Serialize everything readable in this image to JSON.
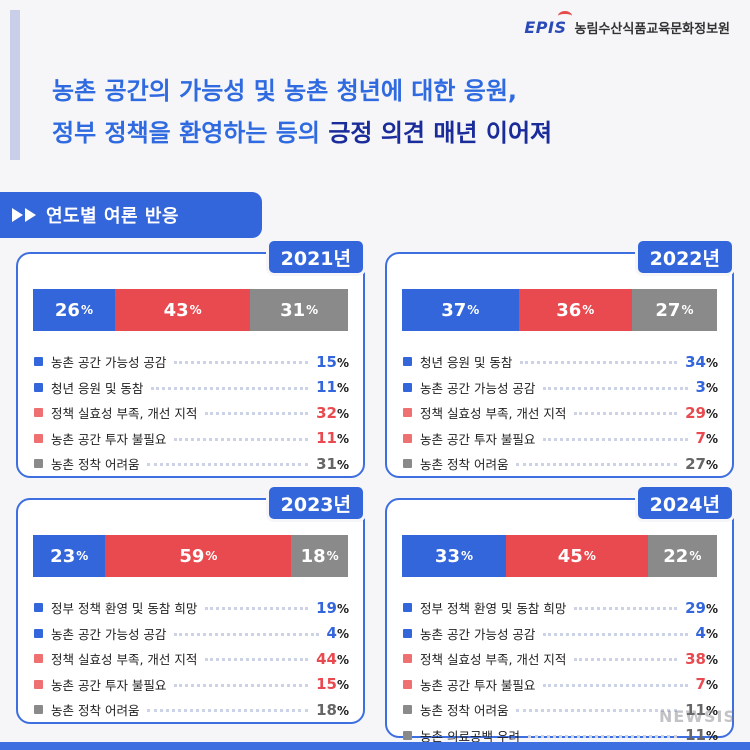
{
  "org": {
    "logo": "EPIS",
    "name": "농림수산식품교육문화정보원"
  },
  "headline": {
    "line1": "농촌 공간의 가능성 및 농촌 청년에 대한 응원,",
    "line2_prefix": "정부 정책을 환영하는 등의 ",
    "line2_highlight": "긍정 의견 매년 이어져"
  },
  "section_title": "연도별 여론 반응",
  "colors": {
    "blue": "#3466db",
    "red": "#e84a4f",
    "gray": "#8a8a8a"
  },
  "watermark": "NEWSIS",
  "chart_data": [
    {
      "type": "bar",
      "title": "2021년",
      "stacked_bar": [
        {
          "value": 26,
          "color": "blue"
        },
        {
          "value": 43,
          "color": "red"
        },
        {
          "value": 31,
          "color": "gray"
        }
      ],
      "items": [
        {
          "label": "농촌 공간 가능성 공감",
          "value": 15,
          "color": "blue"
        },
        {
          "label": "청년 응원 및 동참",
          "value": 11,
          "color": "blue"
        },
        {
          "label": "정책 실효성 부족, 개선 지적",
          "value": 32,
          "color": "red"
        },
        {
          "label": "농촌 공간 투자 불필요",
          "value": 11,
          "color": "red"
        },
        {
          "label": "농촌 정착 어려움",
          "value": 31,
          "color": "gray"
        }
      ]
    },
    {
      "type": "bar",
      "title": "2022년",
      "stacked_bar": [
        {
          "value": 37,
          "color": "blue"
        },
        {
          "value": 36,
          "color": "red"
        },
        {
          "value": 27,
          "color": "gray"
        }
      ],
      "items": [
        {
          "label": "청년 응원 및 동참",
          "value": 34,
          "color": "blue"
        },
        {
          "label": "농촌 공간 가능성 공감",
          "value": 3,
          "color": "blue"
        },
        {
          "label": "정책 실효성 부족, 개선 지적",
          "value": 29,
          "color": "red"
        },
        {
          "label": "농촌 공간 투자 불필요",
          "value": 7,
          "color": "red"
        },
        {
          "label": "농촌 정착 어려움",
          "value": 27,
          "color": "gray"
        }
      ]
    },
    {
      "type": "bar",
      "title": "2023년",
      "stacked_bar": [
        {
          "value": 23,
          "color": "blue"
        },
        {
          "value": 59,
          "color": "red"
        },
        {
          "value": 18,
          "color": "gray"
        }
      ],
      "items": [
        {
          "label": "정부 정책 환영 및 동참 희망",
          "value": 19,
          "color": "blue"
        },
        {
          "label": "농촌 공간 가능성 공감",
          "value": 4,
          "color": "blue"
        },
        {
          "label": "정책 실효성 부족, 개선 지적",
          "value": 44,
          "color": "red"
        },
        {
          "label": "농촌 공간 투자 불필요",
          "value": 15,
          "color": "red"
        },
        {
          "label": "농촌 정착 어려움",
          "value": 18,
          "color": "gray"
        }
      ]
    },
    {
      "type": "bar",
      "title": "2024년",
      "stacked_bar": [
        {
          "value": 33,
          "color": "blue"
        },
        {
          "value": 45,
          "color": "red"
        },
        {
          "value": 22,
          "color": "gray"
        }
      ],
      "items": [
        {
          "label": "정부 정책 환영 및 동참 희망",
          "value": 29,
          "color": "blue"
        },
        {
          "label": "농촌 공간 가능성 공감",
          "value": 4,
          "color": "blue"
        },
        {
          "label": "정책 실효성 부족, 개선 지적",
          "value": 38,
          "color": "red"
        },
        {
          "label": "농촌 공간 투자 불필요",
          "value": 7,
          "color": "red"
        },
        {
          "label": "농촌 정착 어려움",
          "value": 11,
          "color": "gray"
        },
        {
          "label": "농촌 의료공백 우려",
          "value": 11,
          "color": "gray"
        }
      ]
    }
  ]
}
